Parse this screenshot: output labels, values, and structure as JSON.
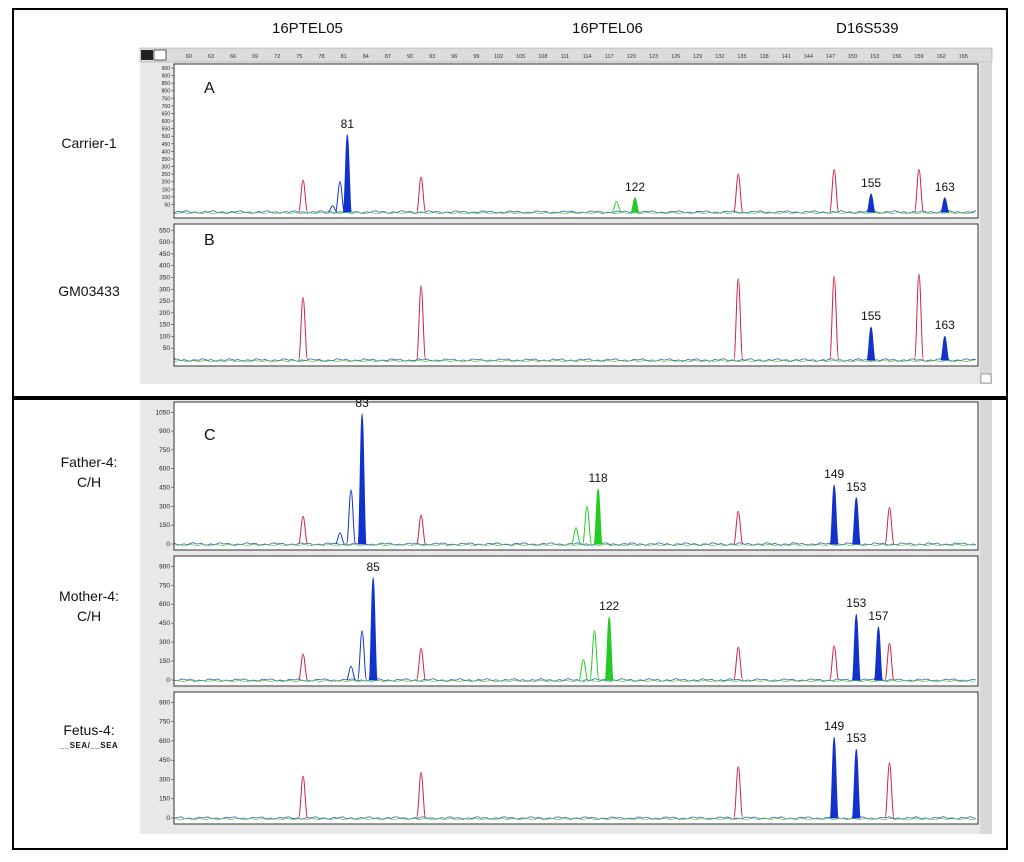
{
  "markers": [
    "16PTEL05",
    "16PTEL06",
    "D16S539"
  ],
  "chart_data": [
    {
      "type": "line",
      "panel": "A",
      "sample": "Carrier-1",
      "y_ticks": [
        "950",
        "900",
        "850",
        "800",
        "750",
        "700",
        "650",
        "600",
        "550",
        "500",
        "450",
        "400",
        "350",
        "300",
        "250",
        "200",
        "150",
        "100",
        "50"
      ],
      "ylim": [
        0,
        950
      ],
      "x_ticks": [
        "60",
        "63",
        "66",
        "69",
        "72",
        "75",
        "78",
        "81",
        "84",
        "87",
        "90",
        "93",
        "96",
        "99",
        "102",
        "105",
        "108",
        "111",
        "114",
        "117",
        "120",
        "123",
        "126",
        "129",
        "132",
        "135",
        "138",
        "141",
        "144",
        "147",
        "150",
        "153",
        "156",
        "159",
        "162",
        "165"
      ],
      "xlim": [
        58,
        167
      ],
      "peaks": [
        {
          "x": 75.5,
          "height": 210,
          "color": "red",
          "label": ""
        },
        {
          "x": 79.5,
          "height": 40,
          "color": "blue-outline",
          "label": ""
        },
        {
          "x": 80.5,
          "height": 200,
          "color": "blue-outline",
          "label": ""
        },
        {
          "x": 81.5,
          "height": 510,
          "color": "blue",
          "label": "81"
        },
        {
          "x": 91.5,
          "height": 230,
          "color": "red",
          "label": ""
        },
        {
          "x": 118,
          "height": 70,
          "color": "green-outline",
          "label": ""
        },
        {
          "x": 120.5,
          "height": 95,
          "color": "green",
          "label": "122"
        },
        {
          "x": 134.5,
          "height": 250,
          "color": "red",
          "label": ""
        },
        {
          "x": 147.5,
          "height": 280,
          "color": "red",
          "label": ""
        },
        {
          "x": 152.5,
          "height": 120,
          "color": "blue",
          "label": "155"
        },
        {
          "x": 159,
          "height": 280,
          "color": "red",
          "label": ""
        },
        {
          "x": 162.5,
          "height": 95,
          "color": "blue",
          "label": "163"
        }
      ]
    },
    {
      "type": "line",
      "panel": "B",
      "sample": "GM03433",
      "y_ticks": [
        "550",
        "500",
        "450",
        "400",
        "350",
        "300",
        "250",
        "200",
        "150",
        "100",
        "50"
      ],
      "ylim": [
        0,
        560
      ],
      "xlim": [
        58,
        167
      ],
      "peaks": [
        {
          "x": 75.5,
          "height": 265,
          "color": "red",
          "label": ""
        },
        {
          "x": 91.5,
          "height": 315,
          "color": "red",
          "label": ""
        },
        {
          "x": 134.5,
          "height": 345,
          "color": "red",
          "label": ""
        },
        {
          "x": 147.5,
          "height": 355,
          "color": "red",
          "label": ""
        },
        {
          "x": 152.5,
          "height": 140,
          "color": "blue",
          "label": "155"
        },
        {
          "x": 159,
          "height": 365,
          "color": "red",
          "label": ""
        },
        {
          "x": 162.5,
          "height": 100,
          "color": "blue",
          "label": "163"
        }
      ]
    },
    {
      "type": "line",
      "panel": "C",
      "sample": "Father-4:",
      "sample_sub": "C/H",
      "y_ticks": [
        "1050",
        "900",
        "750",
        "600",
        "450",
        "300",
        "150",
        "0"
      ],
      "ylim": [
        0,
        1100
      ],
      "xlim": [
        58,
        167
      ],
      "peaks": [
        {
          "x": 75.5,
          "height": 220,
          "color": "red",
          "label": ""
        },
        {
          "x": 80.5,
          "height": 90,
          "color": "blue-outline",
          "label": ""
        },
        {
          "x": 82,
          "height": 430,
          "color": "blue-outline",
          "label": ""
        },
        {
          "x": 83.5,
          "height": 1040,
          "color": "blue",
          "label": "83"
        },
        {
          "x": 91.5,
          "height": 230,
          "color": "red",
          "label": ""
        },
        {
          "x": 112.5,
          "height": 130,
          "color": "green-outline",
          "label": ""
        },
        {
          "x": 114,
          "height": 300,
          "color": "green-outline",
          "label": ""
        },
        {
          "x": 115.5,
          "height": 440,
          "color": "green",
          "label": "118"
        },
        {
          "x": 134.5,
          "height": 260,
          "color": "red",
          "label": ""
        },
        {
          "x": 147.5,
          "height": 470,
          "color": "blue",
          "label": "149"
        },
        {
          "x": 150.5,
          "height": 370,
          "color": "blue",
          "label": "153"
        },
        {
          "x": 155,
          "height": 290,
          "color": "red",
          "label": ""
        }
      ]
    },
    {
      "type": "line",
      "panel": "",
      "sample": "Mother-4:",
      "sample_sub": "C/H",
      "y_ticks": [
        "900",
        "750",
        "600",
        "450",
        "300",
        "150",
        "0"
      ],
      "ylim": [
        0,
        950
      ],
      "xlim": [
        58,
        167
      ],
      "peaks": [
        {
          "x": 75.5,
          "height": 205,
          "color": "red",
          "label": ""
        },
        {
          "x": 82,
          "height": 110,
          "color": "blue-outline",
          "label": ""
        },
        {
          "x": 83.5,
          "height": 390,
          "color": "blue-outline",
          "label": ""
        },
        {
          "x": 85,
          "height": 810,
          "color": "blue",
          "label": "85"
        },
        {
          "x": 91.5,
          "height": 250,
          "color": "red",
          "label": ""
        },
        {
          "x": 113.5,
          "height": 160,
          "color": "green-outline",
          "label": ""
        },
        {
          "x": 115,
          "height": 390,
          "color": "green-outline",
          "label": ""
        },
        {
          "x": 117,
          "height": 500,
          "color": "green",
          "label": "122"
        },
        {
          "x": 134.5,
          "height": 260,
          "color": "red",
          "label": ""
        },
        {
          "x": 147.5,
          "height": 270,
          "color": "red",
          "label": ""
        },
        {
          "x": 150.5,
          "height": 520,
          "color": "blue",
          "label": "153"
        },
        {
          "x": 153.5,
          "height": 420,
          "color": "blue",
          "label": "157"
        },
        {
          "x": 155,
          "height": 290,
          "color": "red",
          "label": ""
        }
      ]
    },
    {
      "type": "line",
      "panel": "",
      "sample": "Fetus-4:",
      "sample_sub": "__SEA/__SEA",
      "y_ticks": [
        "900",
        "750",
        "600",
        "450",
        "300",
        "150",
        "0"
      ],
      "ylim": [
        0,
        950
      ],
      "xlim": [
        58,
        167
      ],
      "peaks": [
        {
          "x": 75.5,
          "height": 325,
          "color": "red",
          "label": ""
        },
        {
          "x": 91.5,
          "height": 355,
          "color": "red",
          "label": ""
        },
        {
          "x": 134.5,
          "height": 400,
          "color": "red",
          "label": ""
        },
        {
          "x": 147.5,
          "height": 630,
          "color": "blue",
          "label": "149"
        },
        {
          "x": 150.5,
          "height": 535,
          "color": "blue",
          "label": "153"
        },
        {
          "x": 155,
          "height": 430,
          "color": "red",
          "label": ""
        }
      ]
    }
  ],
  "colors": {
    "red": "#cc2244",
    "blue": "#1133cc",
    "green": "#22cc22",
    "noise": "#3366aa"
  }
}
